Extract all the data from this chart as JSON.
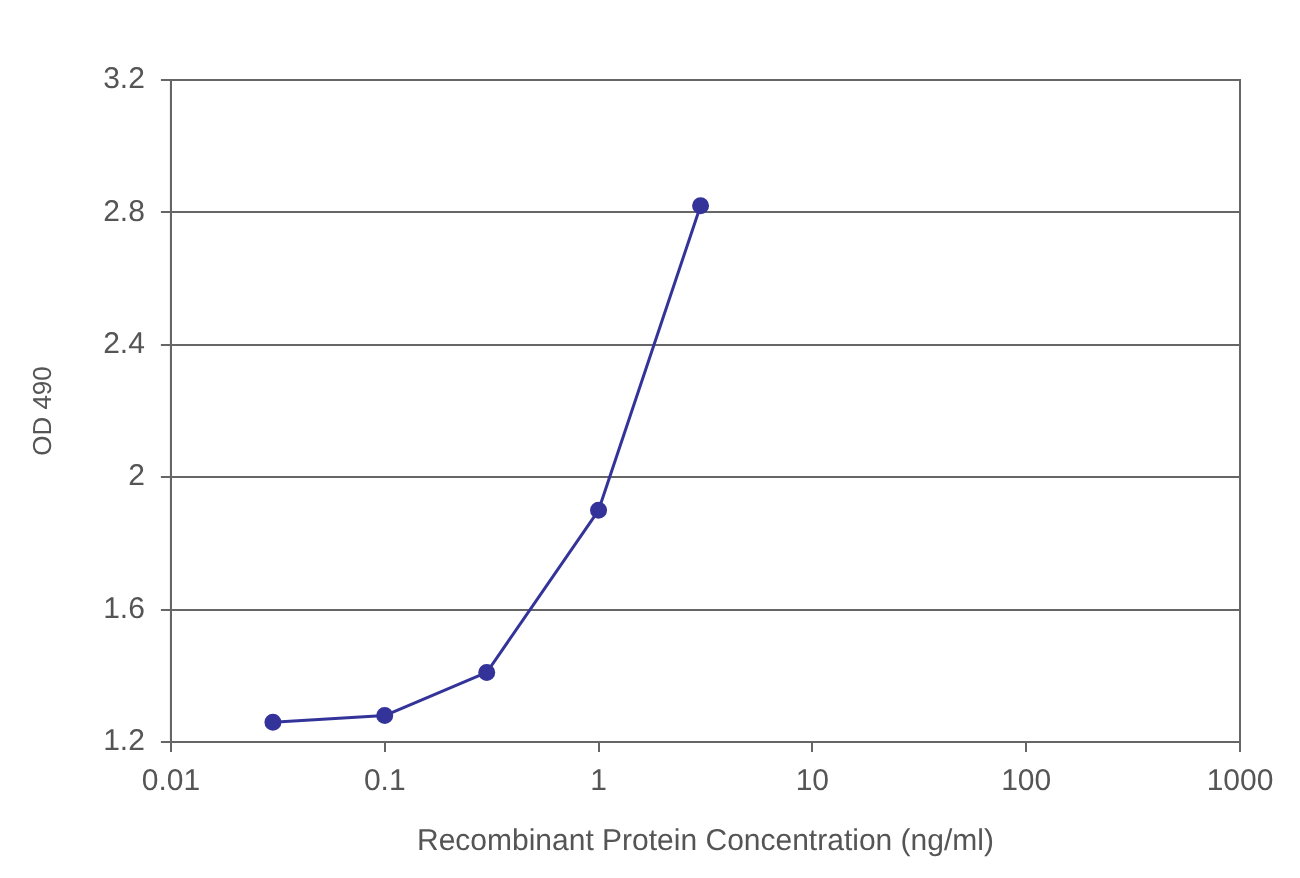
{
  "chart_data": {
    "type": "line",
    "xlabel": "Recombinant Protein Concentration (ng/ml)",
    "ylabel": "OD 490",
    "x": [
      0.03,
      0.1,
      0.3,
      1,
      3
    ],
    "series": [
      {
        "color": "#33339a",
        "values": [
          1.26,
          1.28,
          1.41,
          1.9,
          2.82
        ]
      }
    ],
    "log": "x",
    "xlim": [
      0.01,
      1000
    ],
    "xticks": [
      0.01,
      0.1,
      1,
      10,
      100,
      1000
    ],
    "ylim": [
      1.2,
      3.2
    ],
    "yticks": [
      1.2,
      1.6,
      2,
      2.4,
      2.8,
      3.2
    ],
    "grid": "y",
    "legend": false,
    "marker": "circle",
    "line_style": "solid"
  }
}
